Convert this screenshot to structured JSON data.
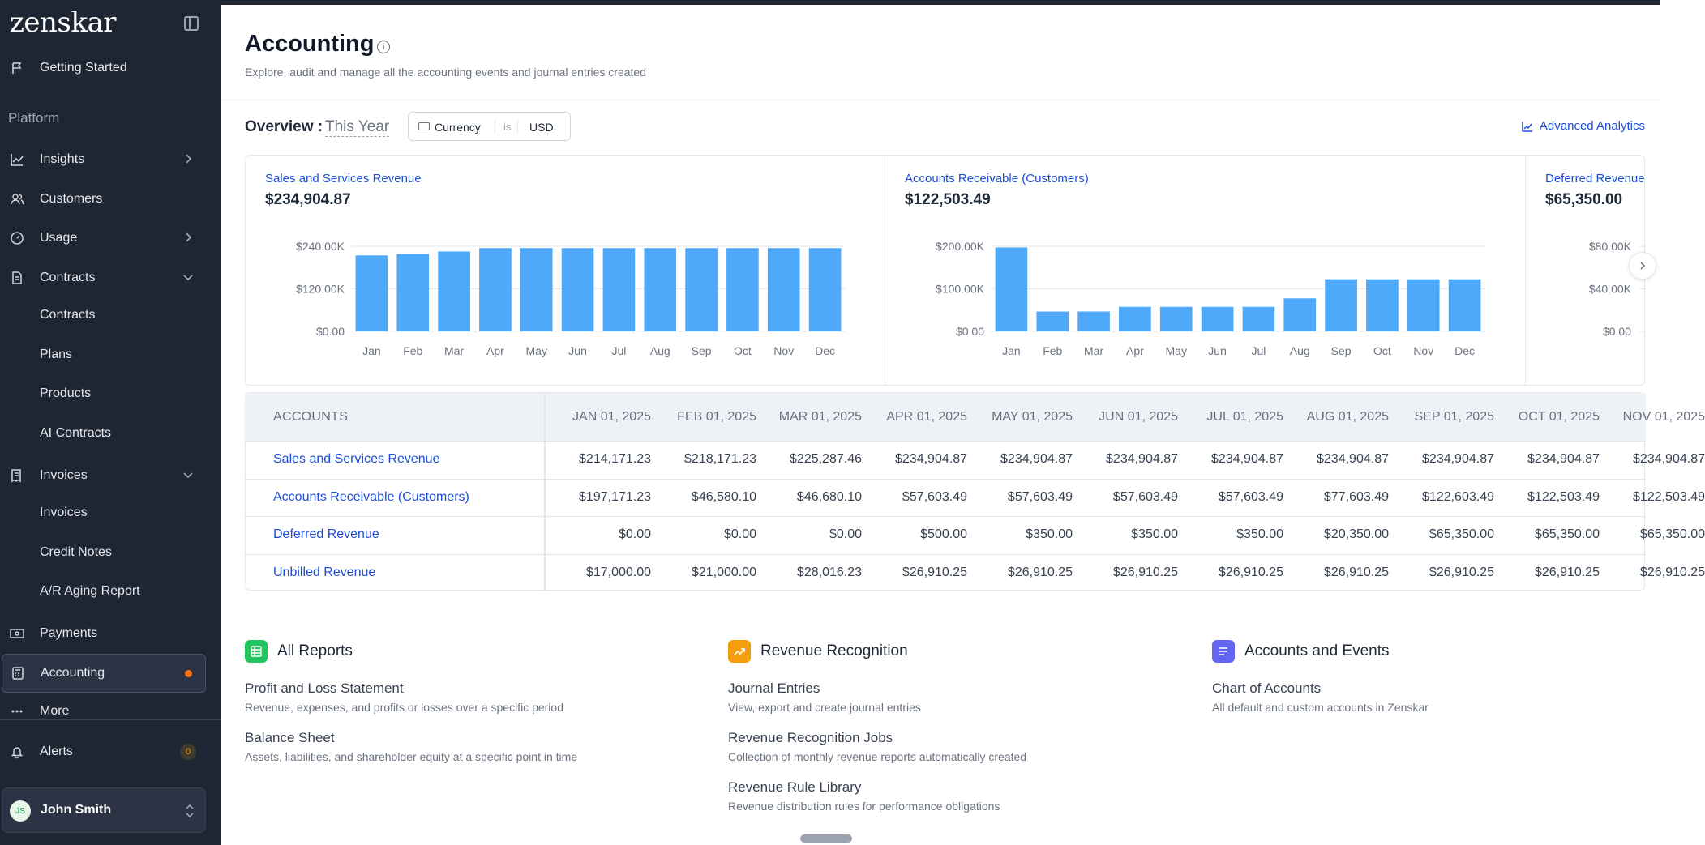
{
  "app": {
    "logo": "zenskar"
  },
  "sidebar": {
    "getting_started": "Getting Started",
    "section_label": "Platform",
    "insights": "Insights",
    "customers": "Customers",
    "usage": "Usage",
    "contracts": "Contracts",
    "contracts_sub": [
      "Contracts",
      "Plans",
      "Products",
      "AI Contracts"
    ],
    "invoices": "Invoices",
    "invoices_sub": [
      "Invoices",
      "Credit Notes",
      "A/R Aging Report"
    ],
    "payments": "Payments",
    "accounting": "Accounting",
    "more": "More",
    "alerts": "Alerts",
    "alerts_count": "0",
    "user": {
      "initials": "JS",
      "name": "John Smith"
    }
  },
  "header": {
    "title": "Accounting",
    "subtitle": "Explore, audit and manage all the accounting events and journal entries created"
  },
  "overview": {
    "label": "Overview :",
    "period": "This Year",
    "filter_field": "Currency",
    "filter_op": "is",
    "filter_value": "USD",
    "advanced_analytics": "Advanced Analytics"
  },
  "chart_data": [
    {
      "type": "bar",
      "title": "Sales and Services Revenue",
      "total": "$234,904.87",
      "categories": [
        "Jan",
        "Feb",
        "Mar",
        "Apr",
        "May",
        "Jun",
        "Jul",
        "Aug",
        "Sep",
        "Oct",
        "Nov",
        "Dec"
      ],
      "values": [
        214171.23,
        218171.23,
        225287.46,
        234904.87,
        234904.87,
        234904.87,
        234904.87,
        234904.87,
        234904.87,
        234904.87,
        234904.87,
        234904.87
      ],
      "ylim": [
        0,
        240000
      ],
      "yticks": [
        0,
        120000,
        240000
      ],
      "ytick_labels": [
        "$0.00",
        "$120.00K",
        "$240.00K"
      ],
      "color": "#4fa9fb"
    },
    {
      "type": "bar",
      "title": "Accounts Receivable (Customers)",
      "total": "$122,503.49",
      "categories": [
        "Jan",
        "Feb",
        "Mar",
        "Apr",
        "May",
        "Jun",
        "Jul",
        "Aug",
        "Sep",
        "Oct",
        "Nov",
        "Dec"
      ],
      "values": [
        197171.23,
        46580.1,
        46680.1,
        57603.49,
        57603.49,
        57603.49,
        57603.49,
        77603.49,
        122603.49,
        122503.49,
        122503.49,
        122503.49
      ],
      "ylim": [
        0,
        200000
      ],
      "yticks": [
        0,
        100000,
        200000
      ],
      "ytick_labels": [
        "$0.00",
        "$100.00K",
        "$200.00K"
      ],
      "color": "#4fa9fb"
    },
    {
      "type": "bar",
      "title": "Deferred Revenue",
      "total": "$65,350.00",
      "categories": [],
      "values": [],
      "ylim": [
        0,
        80000
      ],
      "yticks": [
        0,
        40000,
        80000
      ],
      "ytick_labels": [
        "$0.00",
        "$40.00K",
        "$80.00K"
      ],
      "color": "#4fa9fb"
    }
  ],
  "table": {
    "accounts_header": "ACCOUNTS",
    "columns": [
      "JAN 01, 2025",
      "FEB 01, 2025",
      "MAR 01, 2025",
      "APR 01, 2025",
      "MAY 01, 2025",
      "JUN 01, 2025",
      "JUL 01, 2025",
      "AUG 01, 2025",
      "SEP 01, 2025",
      "OCT 01, 2025",
      "NOV 01, 2025"
    ],
    "rows": [
      {
        "account": "Sales and Services Revenue",
        "values": [
          "$214,171.23",
          "$218,171.23",
          "$225,287.46",
          "$234,904.87",
          "$234,904.87",
          "$234,904.87",
          "$234,904.87",
          "$234,904.87",
          "$234,904.87",
          "$234,904.87",
          "$234,904.87"
        ]
      },
      {
        "account": "Accounts Receivable (Customers)",
        "values": [
          "$197,171.23",
          "$46,580.10",
          "$46,680.10",
          "$57,603.49",
          "$57,603.49",
          "$57,603.49",
          "$57,603.49",
          "$77,603.49",
          "$122,603.49",
          "$122,503.49",
          "$122,503.49"
        ]
      },
      {
        "account": "Deferred Revenue",
        "values": [
          "$0.00",
          "$0.00",
          "$0.00",
          "$500.00",
          "$350.00",
          "$350.00",
          "$350.00",
          "$20,350.00",
          "$65,350.00",
          "$65,350.00",
          "$65,350.00"
        ]
      },
      {
        "account": "Unbilled Revenue",
        "values": [
          "$17,000.00",
          "$21,000.00",
          "$28,016.23",
          "$26,910.25",
          "$26,910.25",
          "$26,910.25",
          "$26,910.25",
          "$26,910.25",
          "$26,910.25",
          "$26,910.25",
          "$26,910.25"
        ]
      }
    ]
  },
  "sections": {
    "all_reports": {
      "title": "All Reports",
      "color": "#22c55e",
      "links": [
        {
          "title": "Profit and Loss Statement",
          "desc": "Revenue, expenses, and profits or losses over a specific period"
        },
        {
          "title": "Balance Sheet",
          "desc": "Assets, liabilities, and shareholder equity at a specific point in time"
        }
      ]
    },
    "revenue_recognition": {
      "title": "Revenue Recognition",
      "color": "#f59e0b",
      "links": [
        {
          "title": "Journal Entries",
          "desc": "View, export and create journal entries"
        },
        {
          "title": "Revenue Recognition Jobs",
          "desc": "Collection of monthly revenue reports automatically created"
        },
        {
          "title": "Revenue Rule Library",
          "desc": "Revenue distribution rules for performance obligations"
        }
      ]
    },
    "accounts_events": {
      "title": "Accounts and Events",
      "color": "#6366f1",
      "links": [
        {
          "title": "Chart of Accounts",
          "desc": "All default and custom accounts in Zenskar"
        }
      ]
    }
  }
}
